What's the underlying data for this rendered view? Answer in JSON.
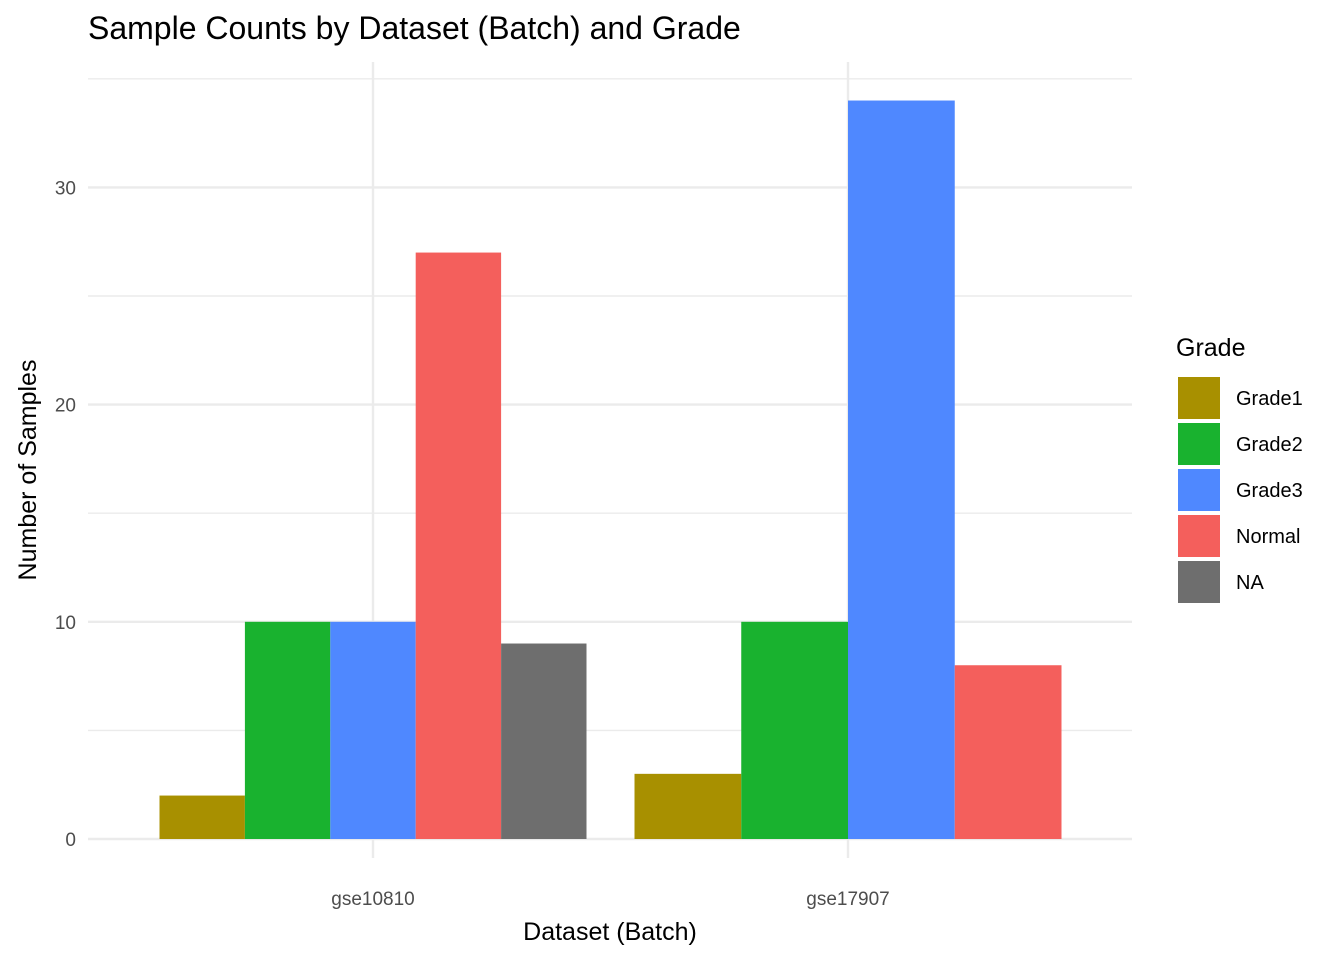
{
  "chart_data": {
    "type": "bar",
    "title": "Sample Counts by Dataset (Batch) and Grade",
    "xlabel": "Dataset (Batch)",
    "ylabel": "Number of Samples",
    "categories": [
      "gse10810",
      "gse17907"
    ],
    "series": [
      {
        "name": "Grade1",
        "color": "#A89000",
        "values": [
          2,
          3
        ]
      },
      {
        "name": "Grade2",
        "color": "#19B22F",
        "values": [
          10,
          10
        ]
      },
      {
        "name": "Grade3",
        "color": "#4F88FF",
        "values": [
          10,
          34
        ]
      },
      {
        "name": "Normal",
        "color": "#F45F5C",
        "values": [
          27,
          8
        ]
      },
      {
        "name": "NA",
        "color": "#6E6E6E",
        "values": [
          9,
          null
        ]
      }
    ],
    "ylim": [
      0,
      35
    ],
    "yticks": [
      0,
      10,
      20,
      30
    ],
    "legend": {
      "title": "Grade",
      "position": "right"
    },
    "grid": true
  }
}
